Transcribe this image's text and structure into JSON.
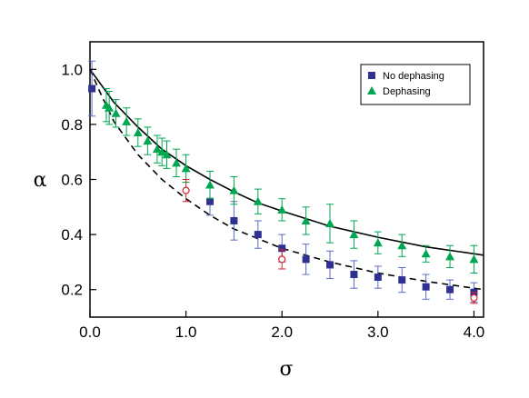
{
  "chart_data": {
    "type": "scatter",
    "title": "",
    "xlabel": "σ",
    "ylabel": "α",
    "xlim": [
      0,
      4.1
    ],
    "ylim": [
      0.1,
      1.1
    ],
    "xticks": [
      0.0,
      1.0,
      2.0,
      3.0,
      4.0
    ],
    "xtick_labels": [
      "0.0",
      "1.0",
      "2.0",
      "3.0",
      "4.0"
    ],
    "yticks": [
      0.2,
      0.4,
      0.6,
      0.8,
      1.0
    ],
    "ytick_labels": [
      "0.2",
      "0.4",
      "0.6",
      "0.8",
      "1.0"
    ],
    "grid": false,
    "legend_position": "top-right",
    "series": [
      {
        "name": "No dephasing",
        "marker": "square",
        "color": "#2e3192",
        "error_color": "#5b6bbf",
        "x": [
          0.02,
          1.25,
          1.5,
          1.75,
          2.0,
          2.25,
          2.5,
          2.75,
          3.0,
          3.25,
          3.5,
          3.75,
          4.0
        ],
        "y": [
          0.93,
          0.52,
          0.45,
          0.4,
          0.35,
          0.31,
          0.29,
          0.255,
          0.245,
          0.235,
          0.21,
          0.2,
          0.19
        ],
        "err": [
          0.1,
          0.05,
          0.07,
          0.05,
          0.05,
          0.055,
          0.05,
          0.05,
          0.04,
          0.045,
          0.045,
          0.035,
          0.035
        ]
      },
      {
        "name": "Dephasing",
        "marker": "triangle",
        "color": "#00a651",
        "error_color": "#00a651",
        "x": [
          0.17,
          0.2,
          0.27,
          0.38,
          0.5,
          0.6,
          0.7,
          0.75,
          0.8,
          0.9,
          1.0,
          1.25,
          1.5,
          1.75,
          2.0,
          2.25,
          2.5,
          2.75,
          3.0,
          3.25,
          3.5,
          3.75,
          4.0
        ],
        "y": [
          0.87,
          0.86,
          0.84,
          0.81,
          0.77,
          0.74,
          0.71,
          0.7,
          0.69,
          0.66,
          0.64,
          0.58,
          0.56,
          0.52,
          0.49,
          0.45,
          0.44,
          0.4,
          0.37,
          0.36,
          0.33,
          0.32,
          0.31
        ],
        "err": [
          0.06,
          0.06,
          0.05,
          0.05,
          0.05,
          0.05,
          0.05,
          0.05,
          0.05,
          0.05,
          0.05,
          0.05,
          0.05,
          0.045,
          0.04,
          0.05,
          0.07,
          0.05,
          0.04,
          0.04,
          0.03,
          0.04,
          0.05
        ]
      },
      {
        "marker": "open-circle",
        "color": "#d2232a",
        "error_color": "#d2232a",
        "x": [
          1.0,
          2.0,
          4.0
        ],
        "y": [
          0.56,
          0.31,
          0.17
        ],
        "err": [
          0.04,
          0.035,
          0.02
        ]
      }
    ],
    "curves": [
      {
        "style": "solid",
        "x": [
          0,
          0.25,
          0.5,
          0.75,
          1.0,
          1.25,
          1.5,
          1.75,
          2.0,
          2.5,
          3.0,
          3.5,
          4.1
        ],
        "y": [
          1.0,
          0.88,
          0.79,
          0.71,
          0.65,
          0.6,
          0.555,
          0.515,
          0.485,
          0.43,
          0.39,
          0.355,
          0.325
        ]
      },
      {
        "style": "dashed",
        "x": [
          0,
          0.1,
          0.25,
          0.5,
          0.75,
          1.0,
          1.25,
          1.5,
          2.0,
          2.5,
          3.0,
          3.5,
          4.1
        ],
        "y": [
          1.0,
          0.92,
          0.81,
          0.69,
          0.6,
          0.53,
          0.47,
          0.42,
          0.35,
          0.3,
          0.26,
          0.23,
          0.2
        ]
      }
    ]
  }
}
